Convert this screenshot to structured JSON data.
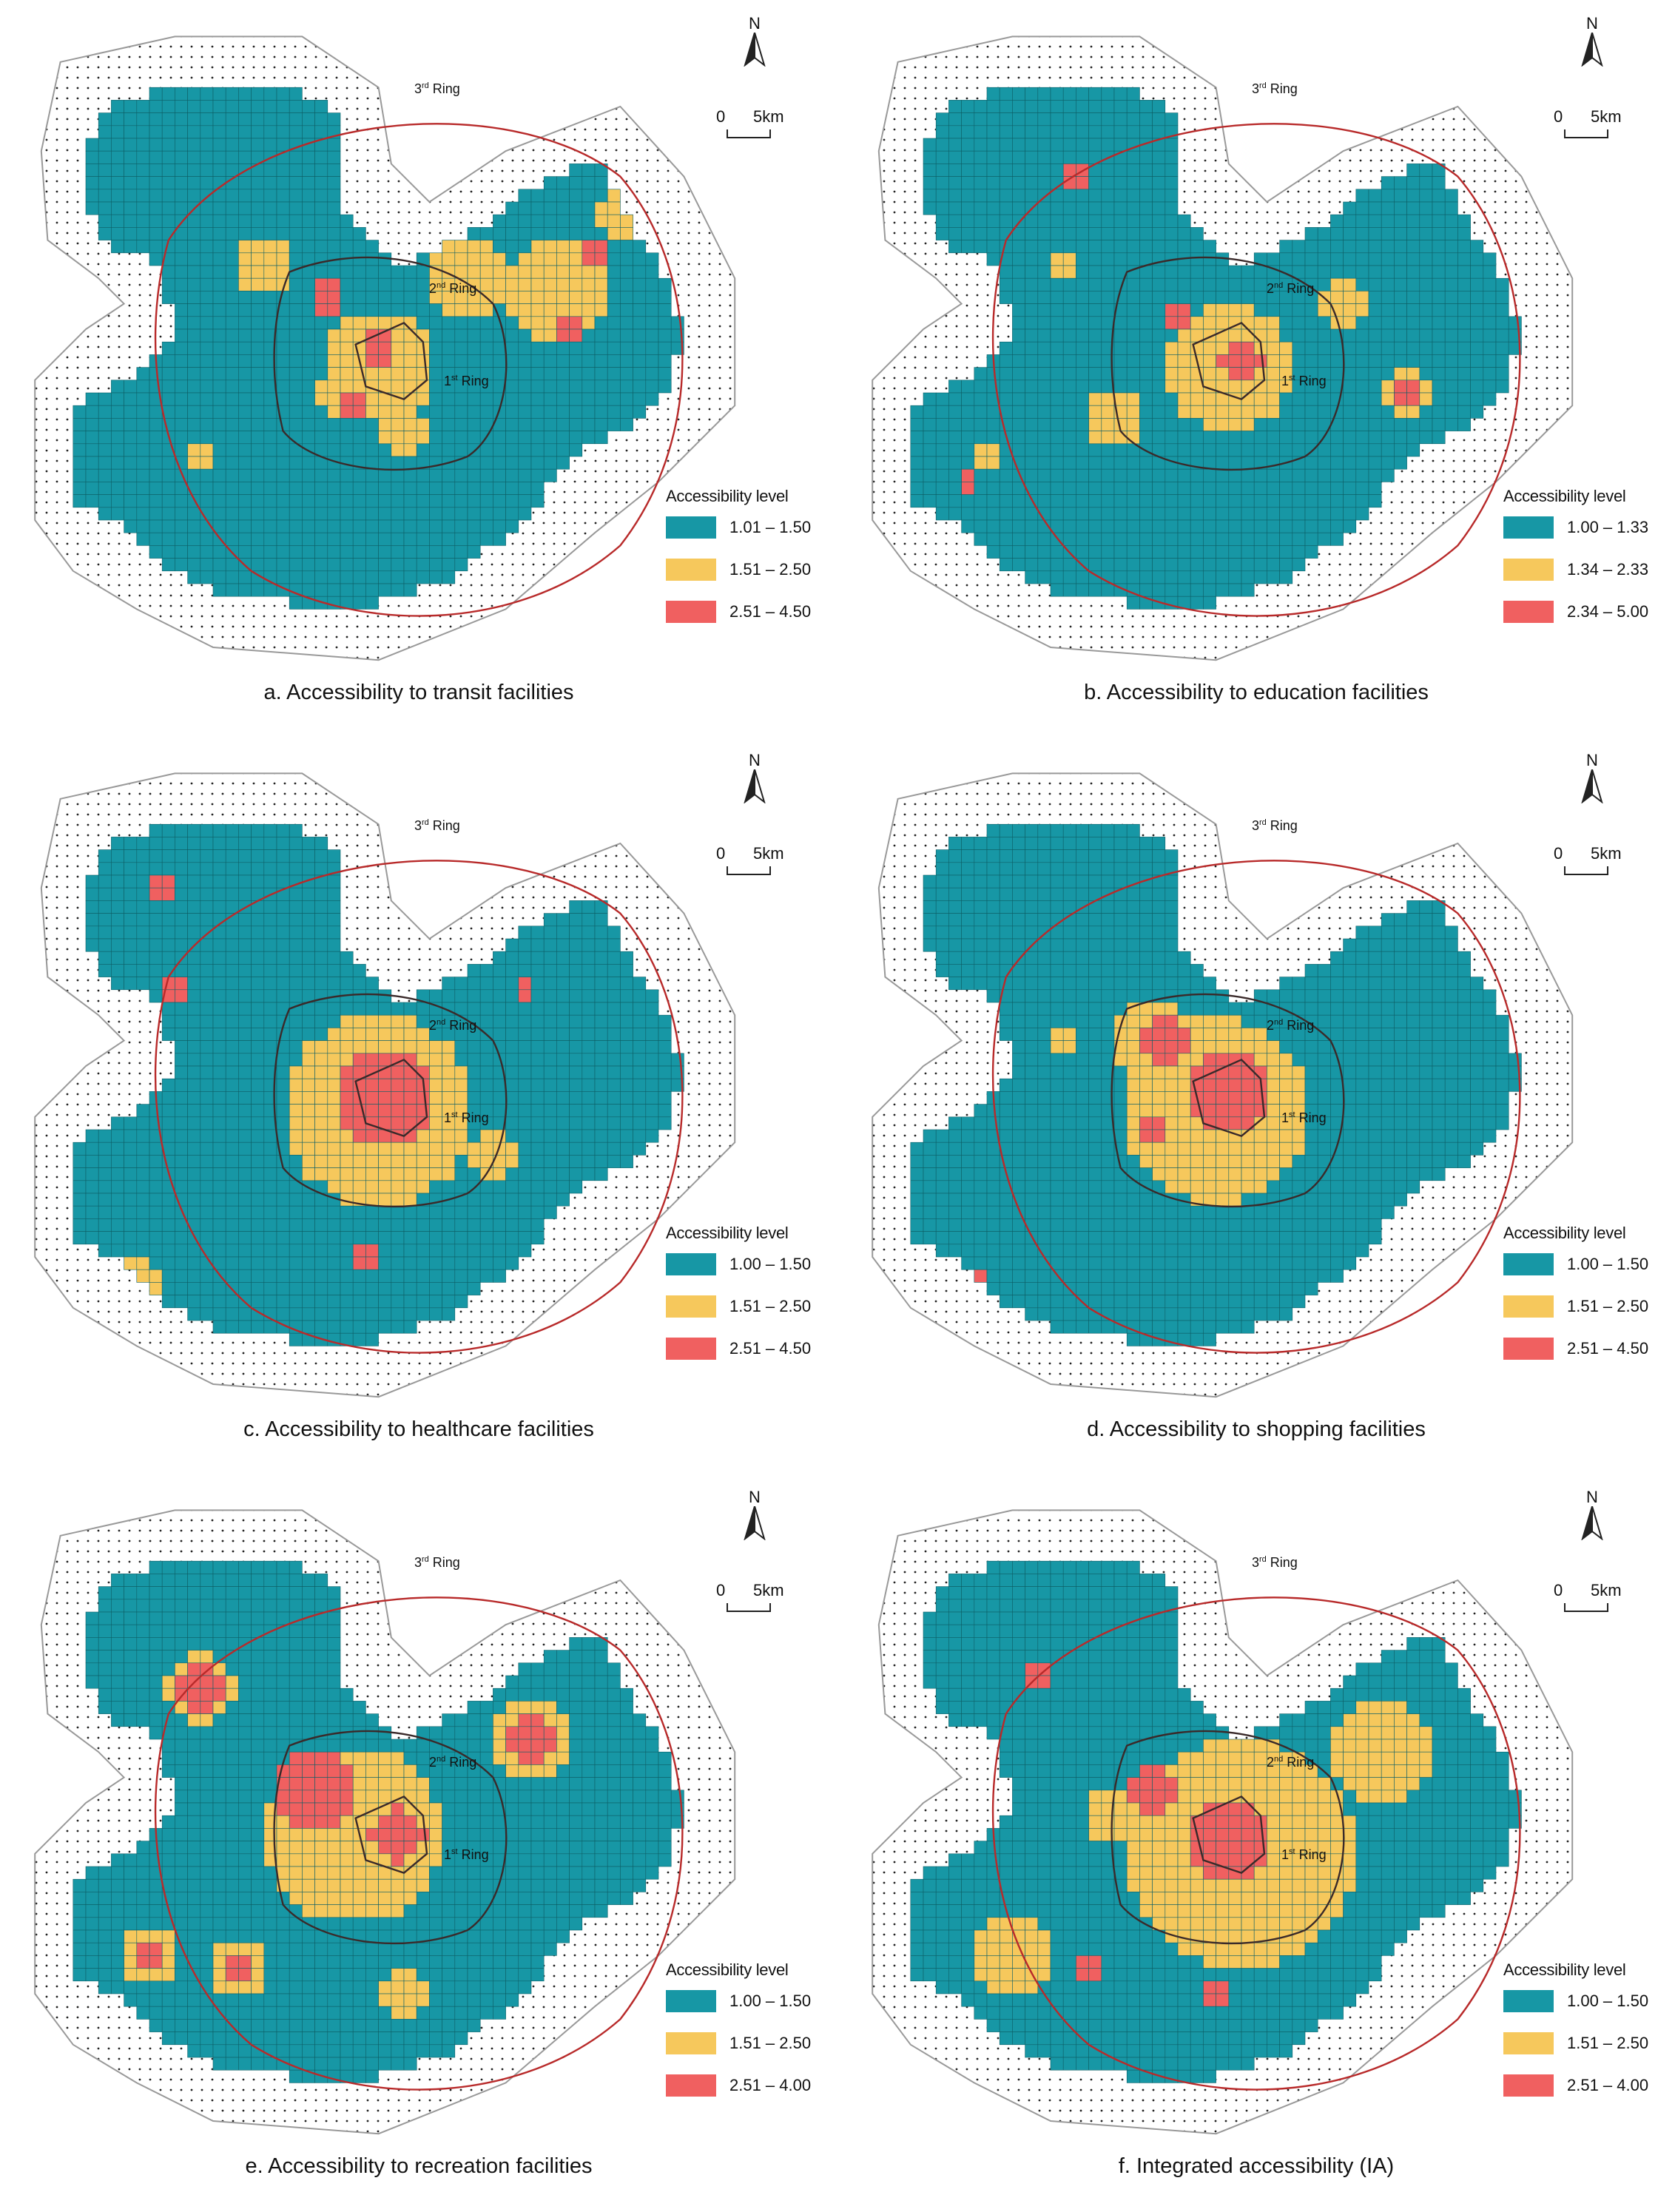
{
  "colors": {
    "low": "#1797a5",
    "mid": "#f6c85c",
    "high": "#f06060",
    "ring3": "#b82a2a",
    "ring": "#3a2a2a",
    "outline": "#999999"
  },
  "compass_label": "N",
  "scale": {
    "zero": "0",
    "distance": "5km"
  },
  "rings": {
    "ring3": {
      "num": "3",
      "sup": "rd",
      "word": " Ring"
    },
    "ring2": {
      "num": "2",
      "sup": "nd",
      "word": " Ring"
    },
    "ring1": {
      "num": "1",
      "sup": "st",
      "word": " Ring"
    }
  },
  "legend_title": "Accessibility level",
  "panels": [
    {
      "caption": "a. Accessibility to transit facilities",
      "classes": [
        "1.01 – 1.50",
        "1.51 – 2.50",
        "2.51 – 4.50"
      ]
    },
    {
      "caption": "b. Accessibility to education facilities",
      "classes": [
        "1.00 – 1.33",
        "1.34 – 2.33",
        "2.34 – 5.00"
      ]
    },
    {
      "caption": "c. Accessibility to healthcare facilities",
      "classes": [
        "1.00 – 1.50",
        "1.51 – 2.50",
        "2.51 – 4.50"
      ]
    },
    {
      "caption": "d. Accessibility to shopping facilities",
      "classes": [
        "1.00 – 1.50",
        "1.51 – 2.50",
        "2.51 – 4.50"
      ]
    },
    {
      "caption": "e. Accessibility to recreation facilities",
      "classes": [
        "1.00 – 1.50",
        "1.51 – 2.50",
        "2.51 – 4.00"
      ]
    },
    {
      "caption": "f. Integrated accessibility (IA)",
      "classes": [
        "1.00 – 1.50",
        "1.51 – 2.50",
        "2.51 – 4.00"
      ]
    }
  ]
}
